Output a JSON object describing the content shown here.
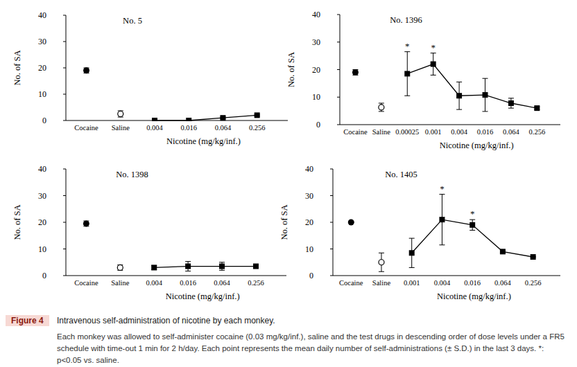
{
  "chart_data": [
    {
      "type": "line",
      "title": "No. 5",
      "x_label": "Nicotine (mg/kg/inf.)",
      "y_label": "No. of SA",
      "categories": [
        "Cocaine",
        "Saline",
        "0.004",
        "0.016",
        "0.064",
        "0.256"
      ],
      "ylim": [
        0,
        40
      ],
      "yticks": [
        0,
        10,
        20,
        30,
        40
      ],
      "grid": false,
      "series": [
        {
          "name": "Cocaine",
          "color": "#000000",
          "marker": "circle",
          "line_style": "none",
          "values": [
            19,
            null,
            null,
            null,
            null,
            null
          ],
          "errors": [
            1,
            null,
            null,
            null,
            null,
            null
          ]
        },
        {
          "name": "Saline",
          "color": "#000000",
          "marker": "open_circle",
          "line_style": "none",
          "values": [
            null,
            2.5,
            null,
            null,
            null,
            null
          ],
          "errors": [
            null,
            1.2,
            null,
            null,
            null,
            null
          ]
        },
        {
          "name": "Nicotine",
          "color": "#000000",
          "marker": "square",
          "line_style": "solid",
          "values": [
            null,
            null,
            0,
            0,
            1,
            2
          ],
          "errors": [
            null,
            null,
            0,
            0,
            0.3,
            0.3
          ]
        }
      ],
      "annotations": []
    },
    {
      "type": "line",
      "title": "No. 1396",
      "x_label": "Nicotine (mg/kg/inf.)",
      "y_label": "No. of SA",
      "categories": [
        "Cocaine",
        "Saline",
        "0.00025",
        "0.001",
        "0.004",
        "0.016",
        "0.064",
        "0.256"
      ],
      "ylim": [
        0,
        40
      ],
      "yticks": [
        0,
        10,
        20,
        30,
        40
      ],
      "grid": false,
      "series": [
        {
          "name": "Cocaine",
          "color": "#000000",
          "marker": "circle",
          "line_style": "none",
          "values": [
            19,
            null,
            null,
            null,
            null,
            null,
            null,
            null
          ],
          "errors": [
            1,
            null,
            null,
            null,
            null,
            null,
            null,
            null
          ]
        },
        {
          "name": "Saline",
          "color": "#000000",
          "marker": "open_circle",
          "line_style": "none",
          "values": [
            null,
            6.3,
            null,
            null,
            null,
            null,
            null,
            null
          ],
          "errors": [
            null,
            1.5,
            null,
            null,
            null,
            null,
            null,
            null
          ]
        },
        {
          "name": "Nicotine",
          "color": "#000000",
          "marker": "square",
          "line_style": "solid",
          "values": [
            null,
            null,
            18.5,
            22,
            10.5,
            10.8,
            7.8,
            6
          ],
          "errors": [
            null,
            null,
            8,
            4,
            5,
            6,
            1.8,
            0.5
          ]
        }
      ],
      "annotations": [
        {
          "text": "*",
          "category": "0.00025"
        },
        {
          "text": "*",
          "category": "0.001"
        }
      ]
    },
    {
      "type": "line",
      "title": "No. 1398",
      "x_label": "Nicotine (mg/kg/inf.)",
      "y_label": "No. of SA",
      "categories": [
        "Cocaine",
        "Saline",
        "0.004",
        "0.016",
        "0.064",
        "0.256"
      ],
      "ylim": [
        0,
        40
      ],
      "yticks": [
        0,
        10,
        20,
        30,
        40
      ],
      "grid": false,
      "series": [
        {
          "name": "Cocaine",
          "color": "#000000",
          "marker": "circle",
          "line_style": "none",
          "values": [
            19.5,
            null,
            null,
            null,
            null,
            null
          ],
          "errors": [
            1,
            null,
            null,
            null,
            null,
            null
          ]
        },
        {
          "name": "Saline",
          "color": "#000000",
          "marker": "open_circle",
          "line_style": "none",
          "values": [
            null,
            3,
            null,
            null,
            null,
            null
          ],
          "errors": [
            null,
            1,
            null,
            null,
            null,
            null
          ]
        },
        {
          "name": "Nicotine",
          "color": "#000000",
          "marker": "square",
          "line_style": "solid",
          "values": [
            null,
            null,
            3,
            3.5,
            3.5,
            3.5
          ],
          "errors": [
            null,
            null,
            0.8,
            1.8,
            1.5,
            0.5
          ]
        }
      ],
      "annotations": []
    },
    {
      "type": "line",
      "title": "No. 1405",
      "x_label": "Nicotine (mg/kg/inf.)",
      "y_label": "No. of SA",
      "categories": [
        "Cocaine",
        "Saline",
        "0.001",
        "0.004",
        "0.016",
        "0.064",
        "0.256"
      ],
      "ylim": [
        0,
        40
      ],
      "yticks": [
        0,
        10,
        20,
        30,
        40
      ],
      "grid": false,
      "series": [
        {
          "name": "Cocaine",
          "color": "#000000",
          "marker": "circle",
          "line_style": "none",
          "values": [
            20,
            null,
            null,
            null,
            null,
            null,
            null
          ],
          "errors": [
            0,
            null,
            null,
            null,
            null,
            null,
            null
          ]
        },
        {
          "name": "Saline",
          "color": "#000000",
          "marker": "open_circle",
          "line_style": "none",
          "values": [
            null,
            5,
            null,
            null,
            null,
            null,
            null
          ],
          "errors": [
            null,
            3.5,
            null,
            null,
            null,
            null,
            null
          ]
        },
        {
          "name": "Nicotine",
          "color": "#000000",
          "marker": "square",
          "line_style": "solid",
          "values": [
            null,
            null,
            8.5,
            21,
            19,
            9,
            7
          ],
          "errors": [
            null,
            null,
            5.5,
            9.5,
            2,
            0.5,
            0
          ]
        }
      ],
      "annotations": [
        {
          "text": "*",
          "category": "0.004"
        },
        {
          "text": "*",
          "category": "0.016"
        }
      ]
    }
  ],
  "figure": {
    "label": "Figure 4",
    "title": "Intravenous self-administration of nicotine by each monkey.",
    "caption": "Each monkey was allowed to self-administer cocaine (0.03 mg/kg/inf.), saline and the test drugs in descending order of dose levels under a FR5 schedule with time-out 1 min for 2 h/day. Each point represents the mean daily number of self-administrations (± S.D.) in the last 3 days. *: p<0.05 vs. saline."
  }
}
